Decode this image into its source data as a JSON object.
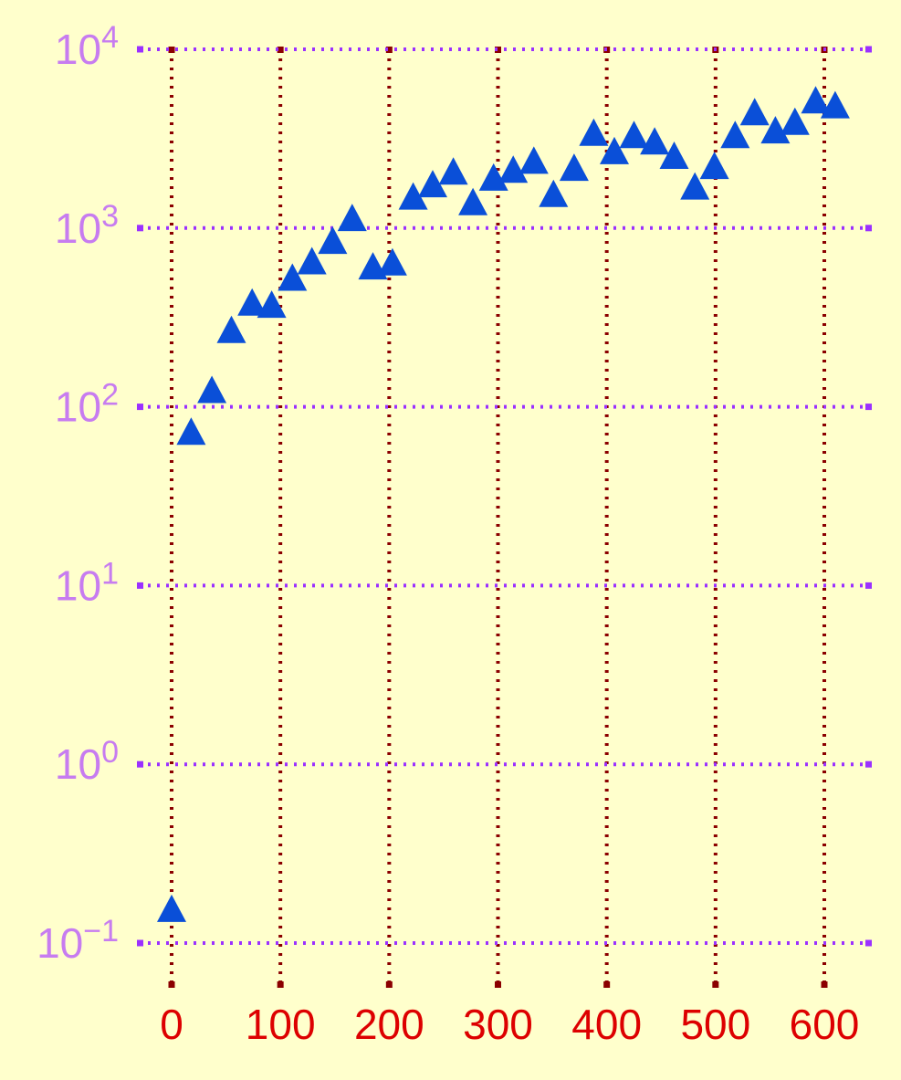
{
  "chart_data": {
    "type": "scatter",
    "title": "",
    "xlabel": "",
    "ylabel": "",
    "x_scale": "linear",
    "y_scale": "log",
    "xlim": [
      -30,
      640
    ],
    "ylim": [
      0.1,
      10000
    ],
    "grid": true,
    "x_ticks": [
      {
        "value": 0,
        "label": "0"
      },
      {
        "value": 100,
        "label": "100"
      },
      {
        "value": 200,
        "label": "200"
      },
      {
        "value": 300,
        "label": "300"
      },
      {
        "value": 400,
        "label": "400"
      },
      {
        "value": 500,
        "label": "500"
      },
      {
        "value": 600,
        "label": "600"
      }
    ],
    "y_ticks": [
      {
        "value": 0.1,
        "base": "10",
        "exp": "−1"
      },
      {
        "value": 1,
        "base": "10",
        "exp": "0"
      },
      {
        "value": 10,
        "base": "10",
        "exp": "1"
      },
      {
        "value": 100,
        "base": "10",
        "exp": "2"
      },
      {
        "value": 1000,
        "base": "10",
        "exp": "3"
      },
      {
        "value": 10000,
        "base": "10",
        "exp": "4"
      }
    ],
    "series": [
      {
        "marker": "triangle",
        "color": "#0a4fd8",
        "points": [
          {
            "x": 0,
            "y": 0.15
          },
          {
            "x": 18,
            "y": 70
          },
          {
            "x": 37,
            "y": 120
          },
          {
            "x": 55,
            "y": 260
          },
          {
            "x": 74,
            "y": 370
          },
          {
            "x": 92,
            "y": 360
          },
          {
            "x": 111,
            "y": 510
          },
          {
            "x": 129,
            "y": 630
          },
          {
            "x": 148,
            "y": 820
          },
          {
            "x": 166,
            "y": 1100
          },
          {
            "x": 185,
            "y": 590
          },
          {
            "x": 203,
            "y": 620
          },
          {
            "x": 222,
            "y": 1450
          },
          {
            "x": 240,
            "y": 1700
          },
          {
            "x": 259,
            "y": 2000
          },
          {
            "x": 277,
            "y": 1350
          },
          {
            "x": 296,
            "y": 1850
          },
          {
            "x": 314,
            "y": 2050
          },
          {
            "x": 333,
            "y": 2300
          },
          {
            "x": 351,
            "y": 1500
          },
          {
            "x": 370,
            "y": 2100
          },
          {
            "x": 388,
            "y": 3300
          },
          {
            "x": 407,
            "y": 2600
          },
          {
            "x": 425,
            "y": 3200
          },
          {
            "x": 444,
            "y": 2950
          },
          {
            "x": 462,
            "y": 2450
          },
          {
            "x": 481,
            "y": 1650
          },
          {
            "x": 499,
            "y": 2150
          },
          {
            "x": 518,
            "y": 3200
          },
          {
            "x": 536,
            "y": 4300
          },
          {
            "x": 555,
            "y": 3400
          },
          {
            "x": 573,
            "y": 3800
          },
          {
            "x": 592,
            "y": 5000
          },
          {
            "x": 610,
            "y": 4700
          }
        ]
      }
    ],
    "colors": {
      "background": "#ffffcc",
      "hgrid": "#9b30ff",
      "vgrid": "#8b0000",
      "ytick_label": "#c77cf0",
      "xtick_label": "#dd0000",
      "marker": "#0a4fd8"
    }
  }
}
